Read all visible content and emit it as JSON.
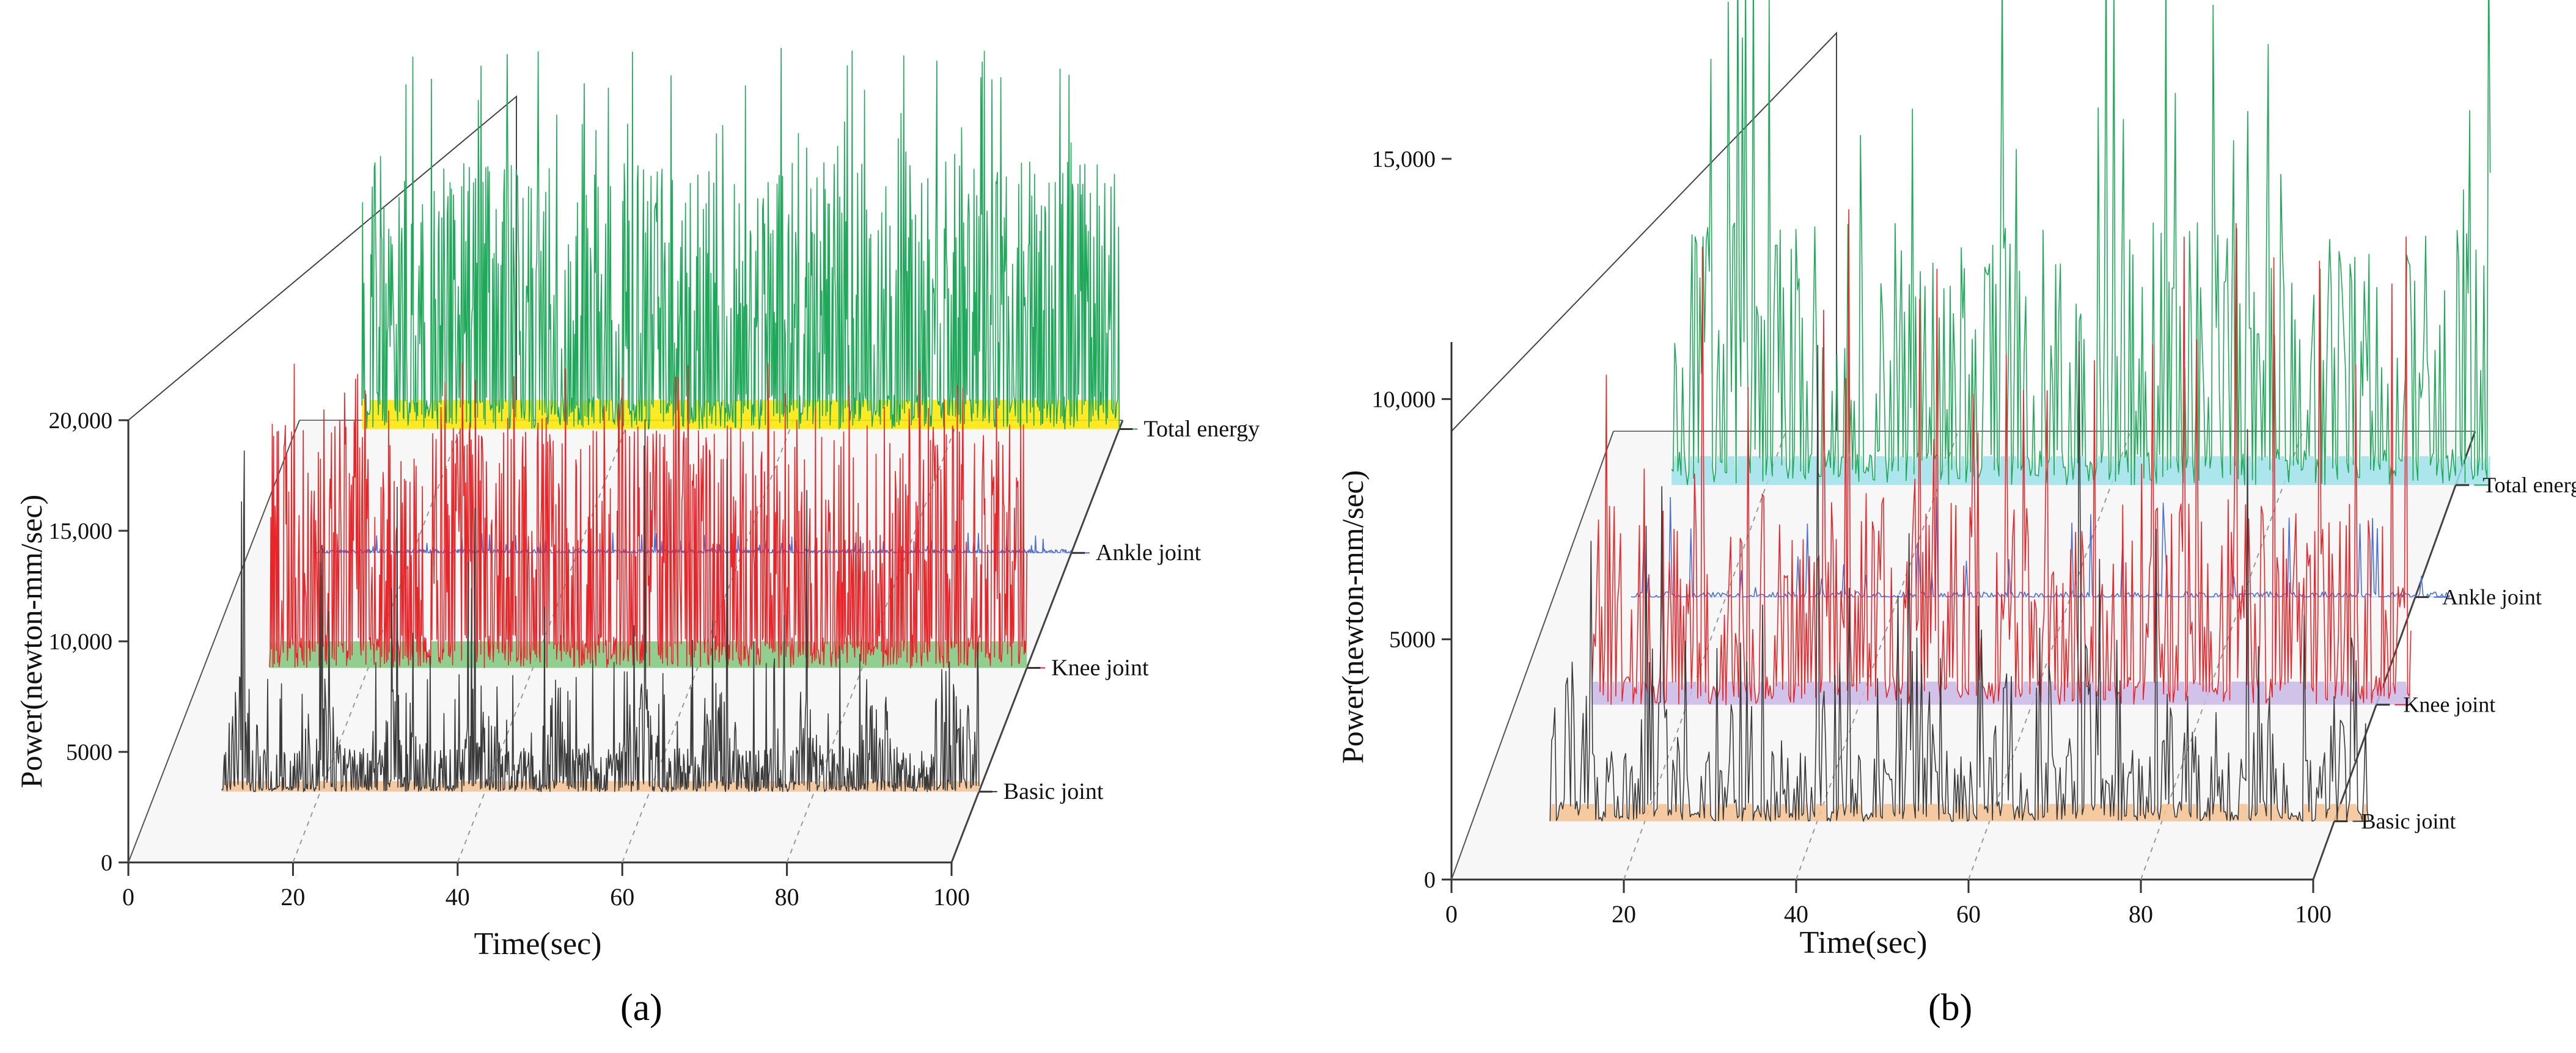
{
  "chart_data": [
    {
      "panel_label": "(a)",
      "type": "line",
      "subtype": "3d-waterfall",
      "xlabel": "Time(sec)",
      "ylabel": "Power(newton-mm/sec)",
      "xlim": [
        0,
        100
      ],
      "ylim": [
        0,
        20000
      ],
      "x_ticks": [
        0,
        20,
        40,
        60,
        80,
        100
      ],
      "x_tick_labels": [
        "0",
        "20",
        "40",
        "60",
        "80",
        "100"
      ],
      "y_ticks": [
        0,
        5000,
        10000,
        15000,
        20000
      ],
      "y_tick_labels": [
        "0",
        "5000",
        "10,000",
        "15,000",
        "20,000"
      ],
      "series": [
        {
          "name": "Basic joint",
          "line_color": "#3a3a3a",
          "fill_color": "#f6c291",
          "x_range": [
            8,
            100
          ],
          "baseline": 0,
          "typical_peak": 4000,
          "max_peak": 15500
        },
        {
          "name": "Knee joint",
          "line_color": "#e8262a",
          "fill_color": "#7ec87e",
          "x_range": [
            8,
            100
          ],
          "baseline": 0,
          "typical_peak": 10000,
          "max_peak": 14000
        },
        {
          "name": "Ankle joint",
          "line_color": "#4a6fd6",
          "fill_color": "#9fb1ea",
          "x_range": [
            8,
            100
          ],
          "baseline": 0,
          "typical_peak": 150,
          "max_peak": 1000
        },
        {
          "name": "Total energy",
          "line_color": "#1fa85a",
          "fill_color": "#ffe600",
          "x_range": [
            8,
            100
          ],
          "baseline": 0,
          "typical_peak": 11000,
          "max_peak": 17500
        }
      ]
    },
    {
      "panel_label": "(b)",
      "type": "line",
      "subtype": "3d-waterfall",
      "xlabel": "Time(sec)",
      "ylabel": "Power(newton-mm/sec)",
      "xlim": [
        0,
        100
      ],
      "ylim": [
        0,
        15000
      ],
      "x_ticks": [
        0,
        20,
        40,
        60,
        80,
        100
      ],
      "x_tick_labels": [
        "0",
        "20",
        "40",
        "60",
        "80",
        "100"
      ],
      "y_ticks": [
        0,
        5000,
        10000,
        15000
      ],
      "y_tick_labels": [
        "0",
        "5000",
        "10,000",
        "15,000"
      ],
      "series": [
        {
          "name": "Basic joint",
          "line_color": "#3a3a3a",
          "fill_color": "#f6c291",
          "x_range": [
            9,
            104
          ],
          "baseline": 0,
          "typical_peak": 3000,
          "max_peak": 12000
        },
        {
          "name": "Knee joint",
          "line_color": "#e8262a",
          "fill_color": "#c9b8e6",
          "x_range": [
            9,
            104
          ],
          "baseline": 0,
          "typical_peak": 4000,
          "max_peak": 10500
        },
        {
          "name": "Ankle joint",
          "line_color": "#4a6fd6",
          "fill_color": "#9fb1ea",
          "x_range": [
            9,
            104
          ],
          "baseline": 0,
          "typical_peak": 100,
          "max_peak": 2300
        },
        {
          "name": "Total energy",
          "line_color": "#1fa85a",
          "fill_color": "#9fe3ea",
          "x_range": [
            9,
            104
          ],
          "baseline": 0,
          "typical_peak": 5000,
          "max_peak": 12000
        }
      ]
    }
  ]
}
